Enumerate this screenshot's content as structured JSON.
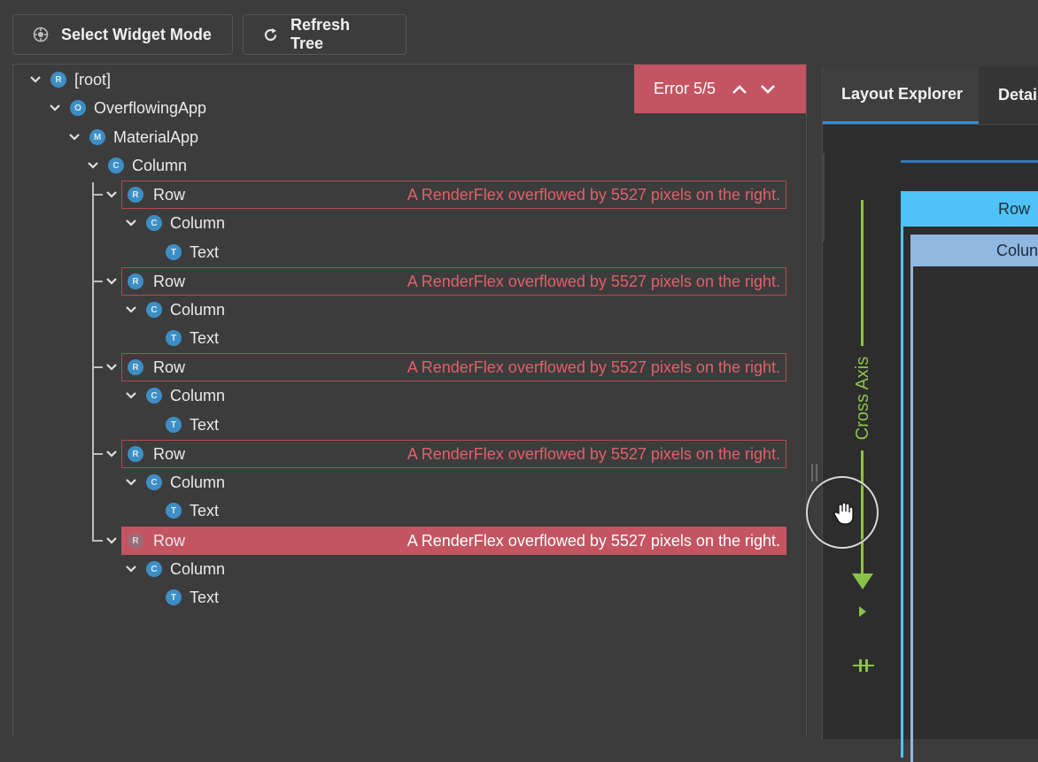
{
  "toolbar": {
    "select_widget_mode": "Select Widget Mode",
    "refresh_tree": "Refresh Tree",
    "select_icon": "target-icon",
    "refresh_icon": "refresh-icon"
  },
  "tree": {
    "nodes": [
      {
        "label": "[root]",
        "badge": "R",
        "depth": 0
      },
      {
        "label": "OverflowingApp",
        "badge": "O",
        "depth": 1
      },
      {
        "label": "MaterialApp",
        "badge": "M",
        "depth": 2
      },
      {
        "label": "Column",
        "badge": "C",
        "depth": 3
      },
      {
        "label": "Row",
        "badge": "R",
        "error": "A RenderFlex overflowed by 5527 pixels on the right."
      },
      {
        "label": "Column",
        "badge": "C"
      },
      {
        "label": "Text",
        "badge": "T"
      },
      {
        "label": "Row",
        "badge": "R",
        "error": "A RenderFlex overflowed by 5527 pixels on the right."
      },
      {
        "label": "Column",
        "badge": "C"
      },
      {
        "label": "Text",
        "badge": "T"
      },
      {
        "label": "Row",
        "badge": "R",
        "error": "A RenderFlex overflowed by 5527 pixels on the right."
      },
      {
        "label": "Column",
        "badge": "C"
      },
      {
        "label": "Text",
        "badge": "T"
      },
      {
        "label": "Row",
        "badge": "R",
        "error": "A RenderFlex overflowed by 5527 pixels on the right."
      },
      {
        "label": "Column",
        "badge": "C"
      },
      {
        "label": "Text",
        "badge": "T"
      },
      {
        "label": "Row",
        "badge": "R",
        "error": "A RenderFlex overflowed by 5527 pixels on the right.",
        "selected": true
      },
      {
        "label": "Column",
        "badge": "C"
      },
      {
        "label": "Text",
        "badge": "T"
      }
    ]
  },
  "error_nav": {
    "label": "Error 5/5"
  },
  "tabs": {
    "layout_explorer": "Layout Explorer",
    "details": "Detail"
  },
  "layout": {
    "cross_axis": "Cross Axis",
    "row_label": "Row",
    "column_label": "Colun",
    "accent_green": "#8bc34a",
    "accent_blue": "#4fc3f7"
  },
  "colors": {
    "error": "#c45462",
    "badge": "#3d8ec4",
    "tab_underline": "#2e8fd8"
  }
}
